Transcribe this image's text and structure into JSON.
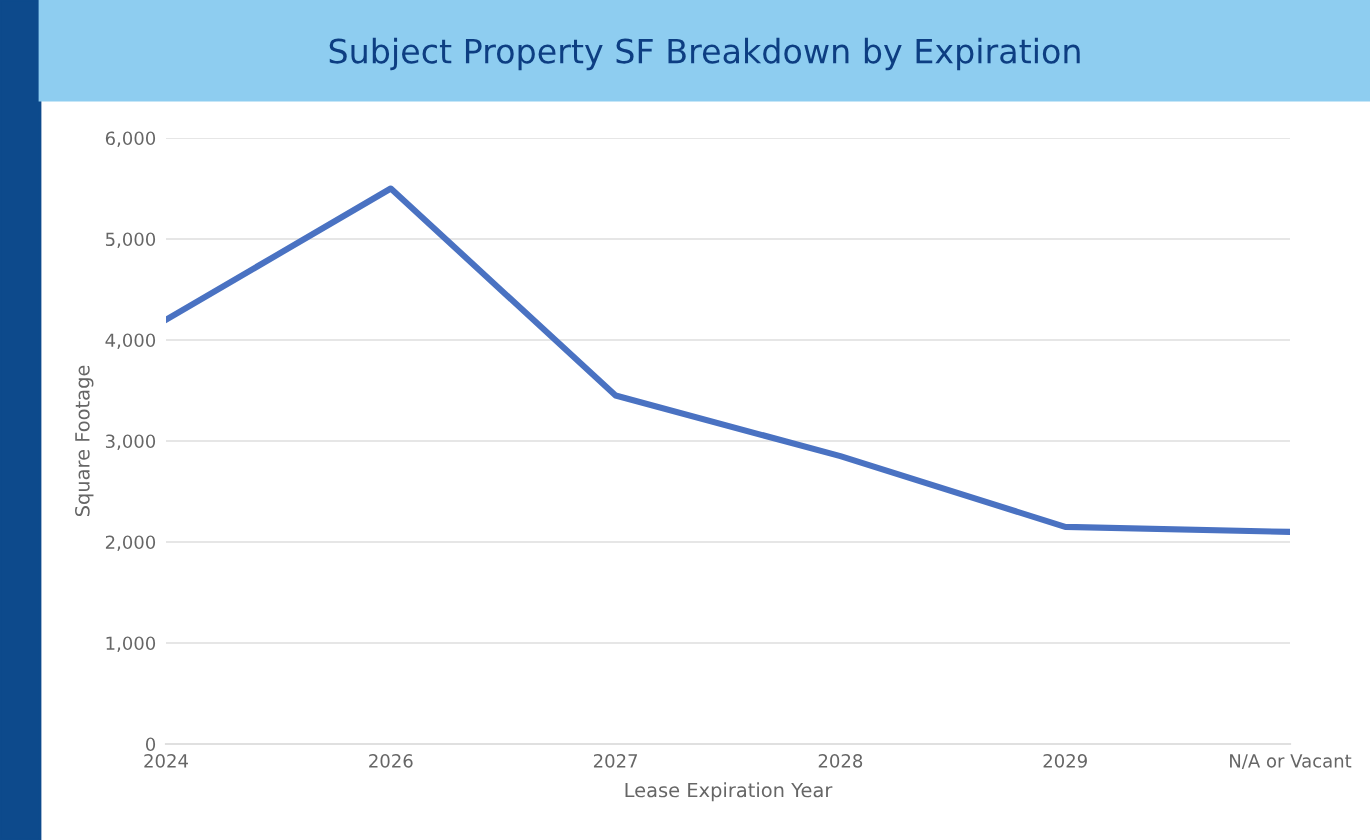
{
  "chart_data": {
    "type": "line",
    "title": "Subject Property SF Breakdown by Expiration",
    "xlabel": "Lease Expiration Year",
    "ylabel": "Square Footage",
    "categories": [
      "2024",
      "2026",
      "2027",
      "2028",
      "2029",
      "N/A or Vacant"
    ],
    "series": [
      {
        "color": "#4a72c2",
        "values": [
          4200,
          5500,
          3450,
          2850,
          2150,
          2100
        ]
      }
    ],
    "ylim": [
      0,
      6000
    ],
    "yticks": [
      {
        "value": 0,
        "label": "0"
      },
      {
        "value": 1000,
        "label": "1,000"
      },
      {
        "value": 2000,
        "label": "2,000"
      },
      {
        "value": 3000,
        "label": "3,000"
      },
      {
        "value": 4000,
        "label": "4,000"
      },
      {
        "value": 5000,
        "label": "5,000"
      },
      {
        "value": 6000,
        "label": "6,000"
      }
    ],
    "grid": "y",
    "legend": false,
    "marker": "none",
    "line_style": "solid"
  }
}
